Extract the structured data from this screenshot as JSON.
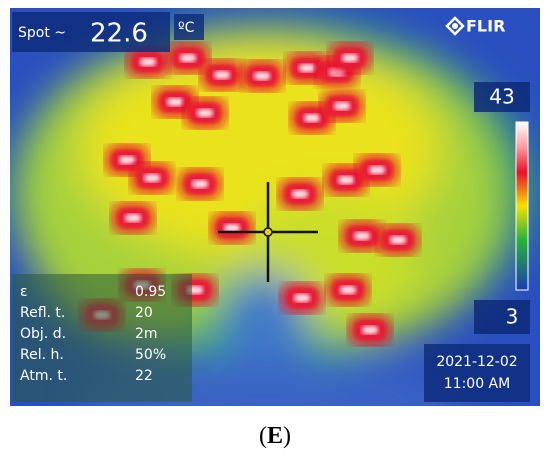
{
  "spot": {
    "label": "Spot ~",
    "value": "22.6",
    "unit": "ºC"
  },
  "brand": "FLIR",
  "scale": {
    "max": "43",
    "min": "3"
  },
  "parameters": [
    {
      "name": "ε",
      "value": "0.95"
    },
    {
      "name": "Refl. t.",
      "value": "20"
    },
    {
      "name": "Obj. d.",
      "value": "2m"
    },
    {
      "name": "Rel. h.",
      "value": "50%"
    },
    {
      "name": "Atm. t.",
      "value": "22"
    }
  ],
  "timestamp": {
    "date": "2021-12-02",
    "time": "11:00 AM"
  },
  "caption": {
    "open": "(",
    "letter": "E",
    "close": ")"
  }
}
